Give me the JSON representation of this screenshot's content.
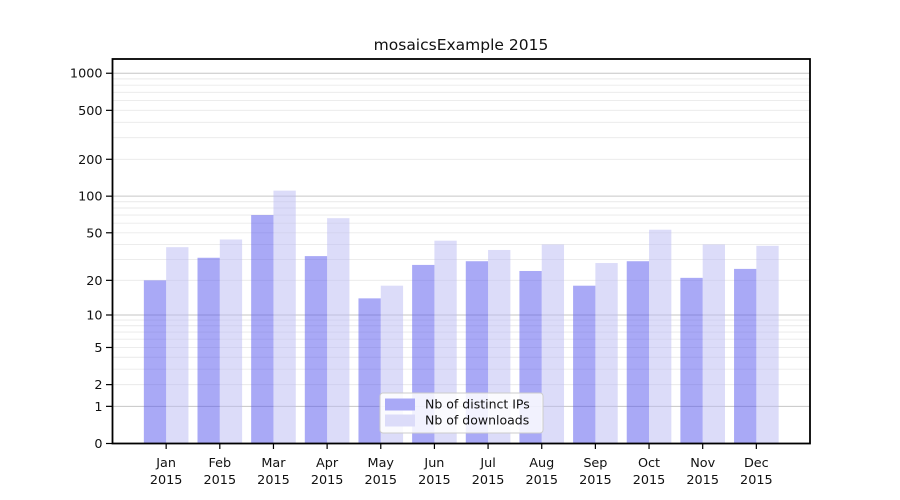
{
  "chart_data": {
    "type": "bar",
    "title": "mosaicsExample 2015",
    "year": "2015",
    "categories": [
      "Jan",
      "Feb",
      "Mar",
      "Apr",
      "May",
      "Jun",
      "Jul",
      "Aug",
      "Sep",
      "Oct",
      "Nov",
      "Dec"
    ],
    "series": [
      {
        "name": "Nb of distinct IPs",
        "color": "#a9a9f6",
        "fill": "rgba(83,83,237,0.5)",
        "values": [
          20,
          31,
          70,
          32,
          14,
          27,
          29,
          24,
          18,
          29,
          21,
          25
        ]
      },
      {
        "name": "Nb of downloads",
        "color": "#dcdcf9",
        "fill": "rgba(185,185,243,0.5)",
        "values": [
          38,
          44,
          111,
          66,
          18,
          43,
          36,
          40,
          28,
          53,
          40,
          39
        ]
      }
    ],
    "xlabel": "",
    "ylabel": "",
    "yscale": "log1p",
    "ylim": [
      0,
      1300
    ],
    "yticks": [
      0,
      1,
      2,
      5,
      10,
      20,
      50,
      100,
      200,
      500,
      1000
    ],
    "grid": {
      "on": true,
      "power_line_color": "#c6c6c6",
      "minor_line_color": "#e9e9e9"
    },
    "legend": {
      "position": "lower center inside",
      "entries": [
        "Nb of distinct IPs",
        "Nb of downloads"
      ],
      "frame_color": "#cccccc",
      "frame_fill": "rgba(255,255,255,0.85)"
    },
    "axis_color": "#000000"
  }
}
